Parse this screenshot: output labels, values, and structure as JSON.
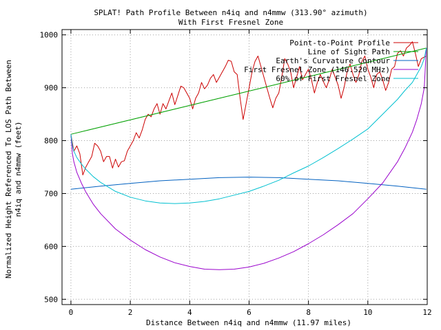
{
  "chart_data": {
    "type": "line",
    "title_line1": "SPLAT! Path Profile Between n4iq and n4mmw (313.90° azimuth)",
    "title_line2": "With First Fresnel Zone",
    "xlabel": "Distance Between n4iq and n4mmw (11.97 miles)",
    "ylabel_line1": "Normalized Height Referenced To LOS Path Between",
    "ylabel_line2": "n4iq and n4mmw (feet)",
    "xlim": [
      -0.3,
      12
    ],
    "ylim": [
      490,
      1010
    ],
    "x_ticks": [
      0,
      2,
      4,
      6,
      8,
      10,
      12
    ],
    "y_ticks": [
      500,
      600,
      700,
      800,
      900,
      1000
    ],
    "x_tick_labels": [
      "0",
      "2",
      "4",
      "6",
      "8",
      "10",
      "12"
    ],
    "y_tick_labels": [
      "500",
      "600",
      "700",
      "800",
      "900",
      "1000"
    ],
    "grid": true,
    "legend_position": "top-right",
    "series": [
      {
        "name": "Point-to-Point Profile",
        "color": "#cc0000",
        "x": [
          0,
          0.1,
          0.2,
          0.3,
          0.4,
          0.5,
          0.6,
          0.7,
          0.8,
          0.9,
          1.0,
          1.1,
          1.2,
          1.3,
          1.4,
          1.5,
          1.6,
          1.7,
          1.8,
          1.9,
          2.0,
          2.1,
          2.2,
          2.3,
          2.4,
          2.5,
          2.6,
          2.7,
          2.8,
          2.9,
          3.0,
          3.1,
          3.2,
          3.3,
          3.4,
          3.5,
          3.6,
          3.7,
          3.8,
          3.9,
          4.0,
          4.1,
          4.2,
          4.3,
          4.4,
          4.5,
          4.6,
          4.7,
          4.8,
          4.9,
          5.0,
          5.1,
          5.2,
          5.3,
          5.4,
          5.5,
          5.6,
          5.7,
          5.8,
          5.9,
          6.0,
          6.1,
          6.2,
          6.3,
          6.4,
          6.5,
          6.6,
          6.7,
          6.8,
          6.9,
          7.0,
          7.1,
          7.2,
          7.3,
          7.4,
          7.5,
          7.6,
          7.7,
          7.8,
          7.9,
          8.0,
          8.1,
          8.2,
          8.3,
          8.4,
          8.5,
          8.6,
          8.7,
          8.8,
          8.9,
          9.0,
          9.1,
          9.2,
          9.3,
          9.4,
          9.5,
          9.6,
          9.7,
          9.8,
          9.9,
          10.0,
          10.1,
          10.2,
          10.3,
          10.4,
          10.5,
          10.6,
          10.7,
          10.8,
          10.9,
          11.0,
          11.1,
          11.2,
          11.3,
          11.4,
          11.5,
          11.6,
          11.7,
          11.8,
          11.97
        ],
        "y": [
          812,
          780,
          790,
          775,
          735,
          750,
          760,
          770,
          795,
          790,
          780,
          760,
          770,
          770,
          748,
          765,
          750,
          760,
          762,
          780,
          790,
          800,
          815,
          805,
          820,
          840,
          850,
          845,
          860,
          870,
          850,
          870,
          860,
          875,
          890,
          868,
          885,
          903,
          900,
          890,
          880,
          860,
          880,
          890,
          910,
          898,
          905,
          918,
          925,
          910,
          920,
          930,
          940,
          952,
          950,
          930,
          925,
          880,
          840,
          870,
          900,
          930,
          950,
          960,
          940,
          920,
          900,
          880,
          862,
          880,
          890,
          920,
          955,
          945,
          930,
          900,
          920,
          940,
          915,
          925,
          935,
          915,
          890,
          910,
          925,
          912,
          900,
          915,
          935,
          920,
          905,
          880,
          900,
          930,
          945,
          925,
          910,
          925,
          950,
          960,
          935,
          920,
          900,
          925,
          930,
          915,
          895,
          910,
          935,
          940,
          965,
          970,
          960,
          975,
          980,
          987,
          965,
          940,
          955,
          960
        ]
      },
      {
        "name": "Line of Sight Path",
        "color": "#00a000",
        "x": [
          0,
          11.97
        ],
        "y": [
          812,
          975
        ]
      },
      {
        "name": "Earth's Curvature Contour",
        "color": "#0060c0",
        "x": [
          0,
          1,
          2,
          3,
          4,
          5,
          6,
          7,
          8,
          9,
          10,
          11,
          11.97
        ],
        "y": [
          708,
          714,
          719,
          724,
          727,
          730,
          731,
          730,
          727,
          724,
          719,
          714,
          708
        ]
      },
      {
        "name": "First Fresnel Zone (146.520 MHz)",
        "color": "#9900cc",
        "x": [
          0,
          0.05,
          0.1,
          0.2,
          0.35,
          0.5,
          0.75,
          1.0,
          1.5,
          2.0,
          2.5,
          3.0,
          3.5,
          4.0,
          4.5,
          5.0,
          5.5,
          6.0,
          6.5,
          7.0,
          7.5,
          8.0,
          8.5,
          9.0,
          9.5,
          10.0,
          10.5,
          11.0,
          11.25,
          11.5,
          11.65,
          11.8,
          11.9,
          11.97
        ],
        "y": [
          812,
          775,
          760,
          740,
          720,
          703,
          680,
          662,
          633,
          612,
          594,
          580,
          569,
          562,
          557,
          556,
          557,
          561,
          568,
          578,
          590,
          605,
          622,
          641,
          662,
          690,
          720,
          760,
          786,
          816,
          840,
          870,
          900,
          975
        ]
      },
      {
        "name": "60% of First Fresnel Zone",
        "color": "#00c0d0",
        "x": [
          0,
          0.05,
          0.1,
          0.2,
          0.35,
          0.5,
          0.75,
          1.0,
          1.5,
          2.0,
          2.5,
          3.0,
          3.5,
          4.0,
          4.5,
          5.0,
          5.5,
          6.0,
          6.5,
          7.0,
          7.5,
          8.0,
          8.5,
          9.0,
          9.5,
          10.0,
          10.5,
          11.0,
          11.25,
          11.5,
          11.65,
          11.8,
          11.9,
          11.97
        ],
        "y": [
          812,
          790,
          780,
          768,
          756,
          746,
          732,
          721,
          704,
          693,
          686,
          682,
          681,
          682,
          685,
          690,
          697,
          704,
          714,
          725,
          739,
          752,
          768,
          785,
          803,
          822,
          850,
          878,
          895,
          910,
          925,
          940,
          955,
          975
        ]
      }
    ]
  }
}
